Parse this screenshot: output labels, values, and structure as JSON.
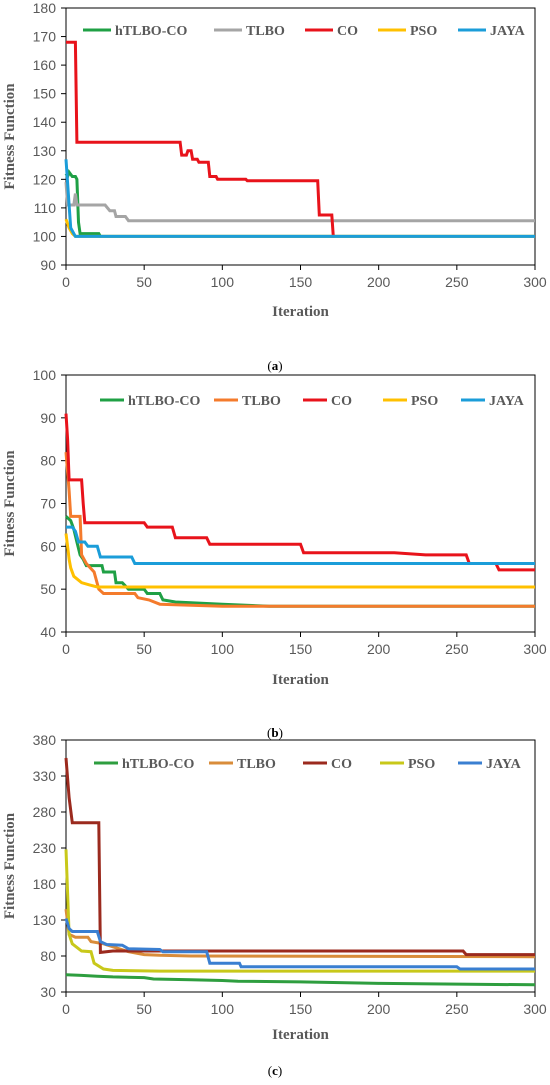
{
  "chart_data": [
    {
      "type": "line",
      "caption": "(a)",
      "xlabel": "Iteration",
      "ylabel": "Fitness Function",
      "xlim": [
        0,
        300
      ],
      "ylim": [
        90,
        180
      ],
      "xticks": [
        0,
        50,
        100,
        150,
        200,
        250,
        300
      ],
      "yticks": [
        90,
        100,
        110,
        120,
        130,
        140,
        150,
        160,
        170,
        180
      ],
      "legend_position": "top",
      "series": [
        {
          "name": "hTLBO-CO",
          "color": "#1fa045",
          "points": [
            [
              0,
              122
            ],
            [
              1,
              121
            ],
            [
              2,
              122.5
            ],
            [
              4,
              121
            ],
            [
              6,
              121
            ],
            [
              7,
              120
            ],
            [
              8,
              105
            ],
            [
              9,
              101
            ],
            [
              13,
              101
            ],
            [
              16,
              101
            ],
            [
              21,
              101
            ],
            [
              22,
              100
            ],
            [
              300,
              100
            ]
          ]
        },
        {
          "name": "TLBO",
          "color": "#a5a5a5",
          "points": [
            [
              0,
              119
            ],
            [
              1,
              111
            ],
            [
              5,
              111
            ],
            [
              6,
              115
            ],
            [
              7,
              111
            ],
            [
              25,
              111
            ],
            [
              28,
              109
            ],
            [
              31,
              109
            ],
            [
              32,
              107
            ],
            [
              38,
              107
            ],
            [
              40,
              105.5
            ],
            [
              300,
              105.5
            ]
          ]
        },
        {
          "name": "CO",
          "color": "#e8131b",
          "points": [
            [
              0,
              168
            ],
            [
              6,
              168
            ],
            [
              7,
              133
            ],
            [
              73,
              133
            ],
            [
              74,
              128.5
            ],
            [
              77,
              128.5
            ],
            [
              78,
              130
            ],
            [
              80,
              130
            ],
            [
              81,
              127
            ],
            [
              84,
              127
            ],
            [
              85,
              126
            ],
            [
              91,
              126
            ],
            [
              92,
              121
            ],
            [
              96,
              121
            ],
            [
              97,
              120
            ],
            [
              115,
              120
            ],
            [
              116,
              119.5
            ],
            [
              161,
              119.5
            ],
            [
              162,
              107.5
            ],
            [
              170,
              107.5
            ],
            [
              171,
              100
            ],
            [
              172,
              100
            ]
          ]
        },
        {
          "name": "PSO",
          "color": "#ffc000",
          "points": [
            [
              0,
              106
            ],
            [
              2,
              103
            ],
            [
              4,
              101
            ],
            [
              6,
              100
            ],
            [
              300,
              100
            ]
          ]
        },
        {
          "name": "JAYA",
          "color": "#1b9dd9",
          "points": [
            [
              0,
              127
            ],
            [
              2,
              111
            ],
            [
              3,
              103
            ],
            [
              5,
              101
            ],
            [
              6,
              100
            ],
            [
              300,
              100
            ]
          ]
        }
      ]
    },
    {
      "type": "line",
      "caption": "(b)",
      "xlabel": "Iteration",
      "ylabel": "Fitness Function",
      "xlim": [
        0,
        300
      ],
      "ylim": [
        40,
        100
      ],
      "xticks": [
        0,
        50,
        100,
        150,
        200,
        250,
        300
      ],
      "yticks": [
        40,
        50,
        60,
        70,
        80,
        90,
        100
      ],
      "legend_position": "top",
      "series": [
        {
          "name": "hTLBO-CO",
          "color": "#1fa045",
          "points": [
            [
              0,
              67
            ],
            [
              3,
              66
            ],
            [
              5,
              64
            ],
            [
              7,
              61
            ],
            [
              9,
              58
            ],
            [
              11,
              57
            ],
            [
              13,
              55.5
            ],
            [
              23,
              55.5
            ],
            [
              24,
              54
            ],
            [
              31,
              54
            ],
            [
              32,
              51.5
            ],
            [
              36,
              51.5
            ],
            [
              40,
              50
            ],
            [
              50,
              50
            ],
            [
              52,
              49
            ],
            [
              60,
              49
            ],
            [
              62,
              47.5
            ],
            [
              70,
              47
            ],
            [
              100,
              46.5
            ],
            [
              130,
              46
            ],
            [
              300,
              46
            ]
          ]
        },
        {
          "name": "TLBO",
          "color": "#f47b2c",
          "points": [
            [
              0,
              82
            ],
            [
              2,
              73
            ],
            [
              3,
              67
            ],
            [
              9,
              67
            ],
            [
              10,
              58
            ],
            [
              13,
              56
            ],
            [
              18,
              54
            ],
            [
              21,
              50
            ],
            [
              24,
              49
            ],
            [
              44,
              49
            ],
            [
              46,
              48
            ],
            [
              53,
              47.5
            ],
            [
              60,
              46.5
            ],
            [
              100,
              46
            ],
            [
              300,
              46
            ]
          ]
        },
        {
          "name": "CO",
          "color": "#e8131b",
          "points": [
            [
              0,
              91
            ],
            [
              1,
              85
            ],
            [
              2,
              75.5
            ],
            [
              10,
              75.5
            ],
            [
              11,
              70
            ],
            [
              12,
              65.5
            ],
            [
              50,
              65.5
            ],
            [
              52,
              64.5
            ],
            [
              68,
              64.5
            ],
            [
              70,
              62
            ],
            [
              90,
              62
            ],
            [
              92,
              60.5
            ],
            [
              150,
              60.5
            ],
            [
              152,
              58.5
            ],
            [
              210,
              58.5
            ],
            [
              230,
              58
            ],
            [
              256,
              58
            ],
            [
              258,
              56
            ],
            [
              275,
              56
            ],
            [
              277,
              54.5
            ],
            [
              300,
              54.5
            ]
          ]
        },
        {
          "name": "PSO",
          "color": "#ffc000",
          "points": [
            [
              0,
              63
            ],
            [
              1,
              60
            ],
            [
              2,
              57
            ],
            [
              3,
              55
            ],
            [
              5,
              53
            ],
            [
              10,
              51.5
            ],
            [
              15,
              51
            ],
            [
              20,
              50.5
            ],
            [
              300,
              50.5
            ]
          ]
        },
        {
          "name": "JAYA",
          "color": "#1b9dd9",
          "points": [
            [
              0,
              64.5
            ],
            [
              4,
              64.5
            ],
            [
              6,
              63.5
            ],
            [
              8,
              61
            ],
            [
              12,
              61
            ],
            [
              14,
              60
            ],
            [
              20,
              60
            ],
            [
              22,
              57.5
            ],
            [
              42,
              57.5
            ],
            [
              44,
              56
            ],
            [
              300,
              56
            ]
          ]
        }
      ]
    },
    {
      "type": "line",
      "caption": "(c)",
      "xlabel": "Iteration",
      "ylabel": "Fitness Function",
      "xlim": [
        0,
        300
      ],
      "ylim": [
        30,
        380
      ],
      "xticks": [
        0,
        50,
        100,
        150,
        200,
        250,
        300
      ],
      "yticks": [
        30,
        80,
        130,
        180,
        230,
        280,
        330,
        380
      ],
      "legend_position": "top",
      "series": [
        {
          "name": "hTLBO-CO",
          "color": "#2e9e3f",
          "points": [
            [
              0,
              54
            ],
            [
              10,
              53
            ],
            [
              20,
              52
            ],
            [
              30,
              51
            ],
            [
              50,
              50
            ],
            [
              56,
              48
            ],
            [
              80,
              47
            ],
            [
              100,
              46
            ],
            [
              110,
              45
            ],
            [
              150,
              44
            ],
            [
              200,
              42
            ],
            [
              250,
              41
            ],
            [
              300,
              40
            ]
          ]
        },
        {
          "name": "TLBO",
          "color": "#d98c3a",
          "points": [
            [
              0,
              145
            ],
            [
              2,
              110
            ],
            [
              6,
              106
            ],
            [
              14,
              106
            ],
            [
              16,
              100
            ],
            [
              24,
              97
            ],
            [
              40,
              86
            ],
            [
              50,
              82
            ],
            [
              60,
              81
            ],
            [
              80,
              80
            ],
            [
              300,
              79
            ]
          ]
        },
        {
          "name": "CO",
          "color": "#9b2a1e",
          "points": [
            [
              0,
              355
            ],
            [
              2,
              300
            ],
            [
              4,
              265
            ],
            [
              21,
              265
            ],
            [
              22,
              85
            ],
            [
              30,
              87
            ],
            [
              60,
              87
            ],
            [
              80,
              87
            ],
            [
              120,
              87
            ],
            [
              254,
              87
            ],
            [
              256,
              82
            ],
            [
              300,
              82
            ]
          ]
        },
        {
          "name": "PSO",
          "color": "#c8c81a",
          "points": [
            [
              0,
              228
            ],
            [
              2,
              110
            ],
            [
              4,
              97
            ],
            [
              10,
              87
            ],
            [
              16,
              86
            ],
            [
              18,
              70
            ],
            [
              24,
              62
            ],
            [
              30,
              60
            ],
            [
              60,
              59
            ],
            [
              300,
              59
            ]
          ]
        },
        {
          "name": "JAYA",
          "color": "#3a7fd1",
          "points": [
            [
              0,
              132
            ],
            [
              2,
              118
            ],
            [
              4,
              114
            ],
            [
              20,
              114
            ],
            [
              22,
              100
            ],
            [
              26,
              96
            ],
            [
              36,
              95
            ],
            [
              40,
              90
            ],
            [
              60,
              89
            ],
            [
              62,
              86
            ],
            [
              90,
              86
            ],
            [
              92,
              70
            ],
            [
              111,
              70
            ],
            [
              112,
              65
            ],
            [
              250,
              65
            ],
            [
              252,
              62
            ],
            [
              300,
              62
            ]
          ]
        }
      ]
    }
  ]
}
